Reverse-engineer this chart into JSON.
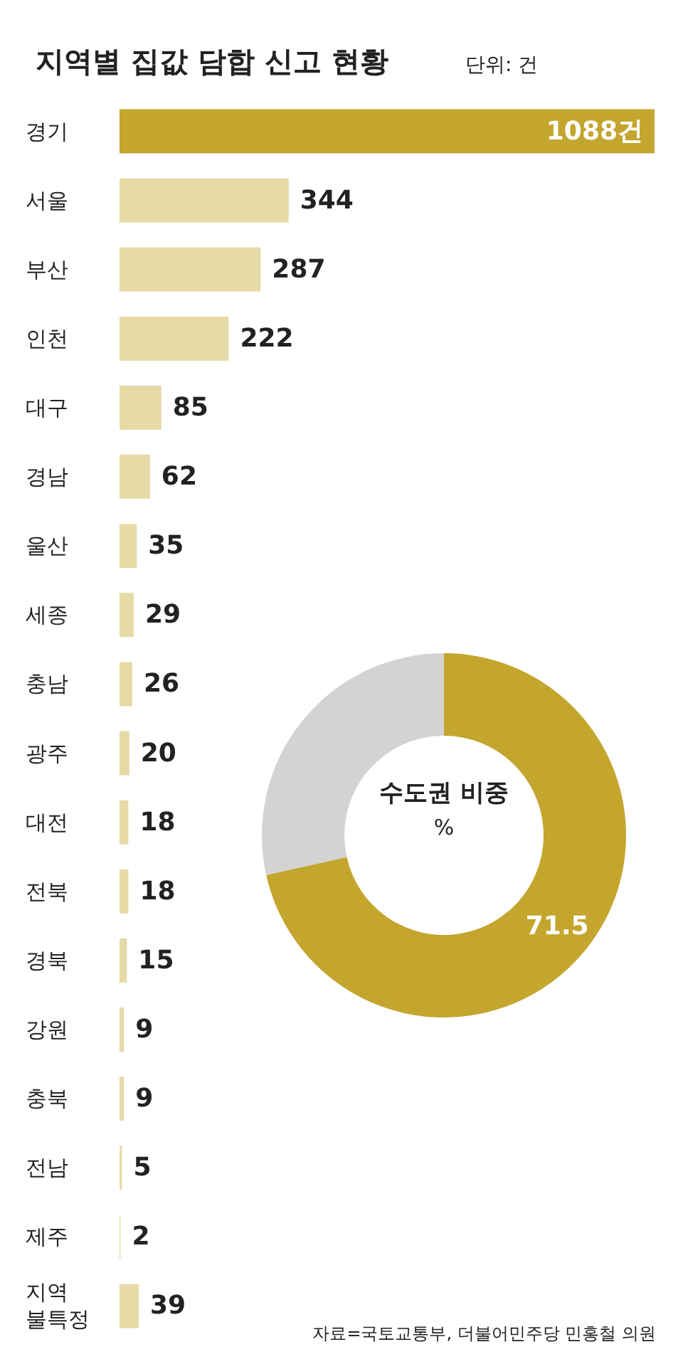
{
  "chart_data": [
    {
      "type": "bar",
      "orientation": "horizontal",
      "title": "지역별 집값 담합 신고 현황",
      "subtitle": "단위: 건",
      "categories": [
        "경기",
        "서울",
        "부산",
        "인천",
        "대구",
        "경남",
        "울산",
        "세종",
        "충남",
        "광주",
        "대전",
        "전북",
        "경북",
        "강원",
        "충북",
        "전남",
        "제주",
        "지역\n불특정"
      ],
      "values": [
        1088,
        344,
        287,
        222,
        85,
        62,
        35,
        29,
        26,
        20,
        18,
        18,
        15,
        9,
        9,
        5,
        2,
        39
      ],
      "colors": [
        "#c4a52e",
        "#e6daa7",
        "#e6daa7",
        "#e6daa7",
        "#e6daa7",
        "#e6daa7",
        "#e6daa7",
        "#e6daa7",
        "#e6daa7",
        "#e6daa7",
        "#e6daa7",
        "#e6daa7",
        "#e6daa7",
        "#e6daa7",
        "#e6daa7",
        "#e6daa7",
        "#e6daa7",
        "#e6daa7"
      ],
      "value_labels": [
        "1088건",
        "344",
        "287",
        "222",
        "85",
        "62",
        "35",
        "29",
        "26",
        "20",
        "18",
        "18",
        "15",
        "9",
        "9",
        "5",
        "2",
        "39"
      ],
      "annotations": [
        "자료=국토교통부, 더불어민주당 민홍철 의원"
      ],
      "tick_labels": "y"
    },
    {
      "type": "donut",
      "title": "수도권 비중",
      "subtitle": "%",
      "categories": [
        null,
        null
      ],
      "values": [
        71.5,
        28.5
      ],
      "colors": [
        "#c4a52e",
        "#d3d3d3"
      ],
      "value_labels": [
        "71.5",
        null
      ]
    }
  ]
}
